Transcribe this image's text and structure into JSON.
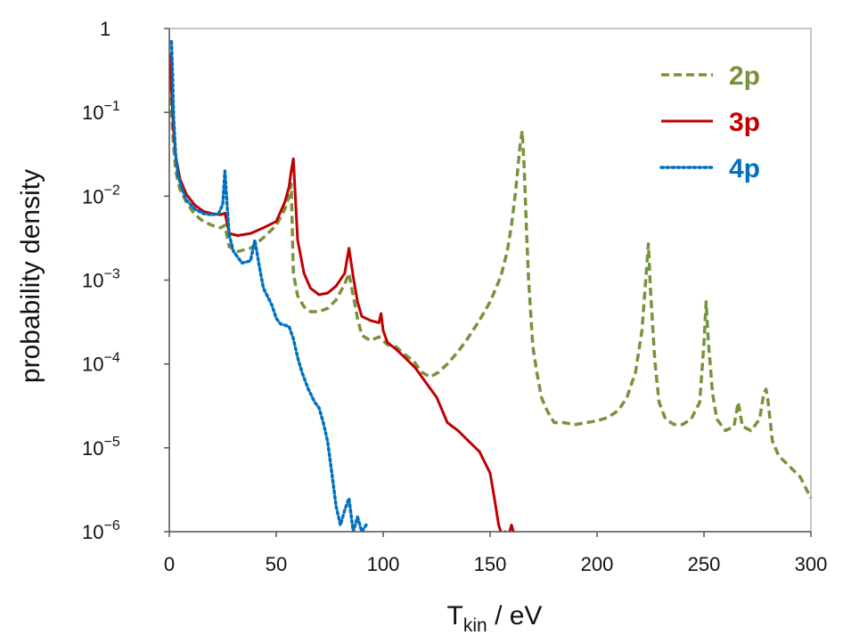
{
  "chart_data": {
    "type": "line",
    "title": "",
    "xlabel": "T",
    "xlabel_sub": "kin",
    "xlabel_suffix": " / eV",
    "ylabel": "probability density",
    "xlim": [
      0,
      300
    ],
    "ylim": [
      1e-06,
      1
    ],
    "yscale": "log",
    "x_ticks": [
      0,
      50,
      100,
      150,
      200,
      250,
      300
    ],
    "x_tick_labels": [
      "0",
      "50",
      "100",
      "150",
      "200",
      "250",
      "300"
    ],
    "y_ticks": [
      {
        "value": 1,
        "base": "1",
        "exp": ""
      },
      {
        "value": 0.1,
        "base": "10",
        "exp": "−1"
      },
      {
        "value": 0.01,
        "base": "10",
        "exp": "−2"
      },
      {
        "value": 0.001,
        "base": "10",
        "exp": "−3"
      },
      {
        "value": 0.0001,
        "base": "10",
        "exp": "−4"
      },
      {
        "value": 1e-05,
        "base": "10",
        "exp": "−5"
      },
      {
        "value": 1e-06,
        "base": "10",
        "exp": "−6"
      }
    ],
    "legend_position": "top-right",
    "series": [
      {
        "name": "2p",
        "color": "#77933c",
        "style": "dashed",
        "x": [
          0.5,
          1,
          2,
          3,
          5,
          8,
          12,
          16,
          20,
          24,
          26,
          28,
          32,
          38,
          44,
          50,
          54,
          56,
          57,
          58,
          60,
          63,
          66,
          70,
          74,
          78,
          82,
          84,
          86,
          88,
          90,
          94,
          98,
          102,
          106,
          110,
          114,
          118,
          122,
          126,
          130,
          135,
          140,
          145,
          150,
          155,
          158,
          160,
          162,
          164,
          165,
          166,
          167,
          168,
          170,
          172,
          174,
          176,
          178,
          180,
          184,
          190,
          195,
          200,
          205,
          210,
          214,
          218,
          221,
          223,
          224,
          225,
          227,
          229,
          232,
          236,
          240,
          244,
          248,
          250,
          251,
          252,
          254,
          256,
          260,
          264,
          266,
          268,
          272,
          276,
          278,
          279,
          280,
          282,
          285,
          290,
          295,
          300
        ],
        "y": [
          0.3,
          0.1,
          0.04,
          0.02,
          0.012,
          0.0085,
          0.006,
          0.005,
          0.0045,
          0.0042,
          0.0045,
          0.0025,
          0.0022,
          0.0024,
          0.0032,
          0.0045,
          0.007,
          0.01,
          0.014,
          0.0012,
          0.00065,
          0.00048,
          0.00042,
          0.00042,
          0.00046,
          0.00058,
          0.0009,
          0.0012,
          0.00065,
          0.00035,
          0.00022,
          0.00019,
          0.00021,
          0.00017,
          0.00016,
          0.00013,
          0.00011,
          8e-05,
          7e-05,
          8e-05,
          0.0001,
          0.00014,
          0.00021,
          0.00033,
          0.00055,
          0.0011,
          0.0022,
          0.0045,
          0.012,
          0.04,
          0.06,
          0.02,
          0.004,
          0.001,
          0.00016,
          7.5e-05,
          4e-05,
          3e-05,
          2.4e-05,
          2e-05,
          2e-05,
          1.9e-05,
          2e-05,
          2.1e-05,
          2.3e-05,
          2.8e-05,
          4e-05,
          8e-05,
          0.00025,
          0.0012,
          0.0027,
          0.00075,
          0.00011,
          3.5e-05,
          2.2e-05,
          1.9e-05,
          1.9e-05,
          2.2e-05,
          3.5e-05,
          0.00018,
          0.00055,
          0.00019,
          4.5e-05,
          2.2e-05,
          1.6e-05,
          1.8e-05,
          3.5e-05,
          1.8e-05,
          1.6e-05,
          2.2e-05,
          4.5e-05,
          5e-05,
          3.5e-05,
          1.2e-05,
          8e-06,
          6e-06,
          4.5e-06,
          2.5e-06
        ]
      },
      {
        "name": "3p",
        "color": "#c00000",
        "style": "solid",
        "x": [
          0.5,
          1,
          2,
          3,
          5,
          8,
          12,
          16,
          20,
          24,
          26,
          28,
          32,
          38,
          44,
          50,
          54,
          56,
          57,
          58,
          60,
          63,
          66,
          70,
          74,
          78,
          82,
          84,
          86,
          88,
          90,
          94,
          98,
          99,
          100,
          102,
          106,
          110,
          115,
          120,
          125,
          130,
          135,
          140,
          145,
          150,
          152,
          154,
          155,
          156,
          157,
          158,
          160,
          162
        ],
        "y": [
          0.5,
          0.2,
          0.06,
          0.03,
          0.016,
          0.0105,
          0.0078,
          0.0066,
          0.0062,
          0.006,
          0.0063,
          0.0036,
          0.0034,
          0.0036,
          0.0042,
          0.005,
          0.0085,
          0.013,
          0.02,
          0.028,
          0.003,
          0.0012,
          0.0008,
          0.00067,
          0.0007,
          0.00085,
          0.0012,
          0.0024,
          0.0011,
          0.00055,
          0.00037,
          0.00033,
          0.00031,
          0.0004,
          0.00025,
          0.00018,
          0.00015,
          0.00012,
          9e-05,
          6e-05,
          4e-05,
          2e-05,
          1.6e-05,
          1.2e-05,
          9e-06,
          5e-06,
          2.5e-06,
          1.2e-06,
          1e-06,
          9e-07,
          1e-06,
          8e-07,
          1.2e-06,
          8e-07
        ]
      },
      {
        "name": "4p",
        "color": "#0070c0",
        "style": "dotted",
        "x": [
          1,
          1.5,
          2,
          3,
          4,
          6,
          8,
          12,
          16,
          20,
          23,
          25,
          26,
          27,
          28,
          30,
          34,
          38,
          40,
          42,
          44,
          48,
          50,
          52,
          54,
          56,
          58,
          60,
          62,
          65,
          68,
          70,
          72,
          74,
          76,
          78,
          80,
          82,
          84,
          86,
          88,
          90,
          92
        ],
        "y": [
          0.7,
          0.3,
          0.09,
          0.03,
          0.018,
          0.012,
          0.009,
          0.007,
          0.0062,
          0.006,
          0.0062,
          0.008,
          0.02,
          0.008,
          0.0035,
          0.0022,
          0.0016,
          0.0017,
          0.003,
          0.0015,
          0.0008,
          0.0005,
          0.00035,
          0.0003,
          0.00029,
          0.00028,
          0.0002,
          0.00012,
          8e-05,
          5e-05,
          3.5e-05,
          3e-05,
          2e-05,
          1.2e-05,
          5e-06,
          2e-06,
          1.2e-06,
          1.8e-06,
          2.5e-06,
          1e-06,
          1.5e-06,
          1e-06,
          1.2e-06
        ]
      }
    ]
  }
}
